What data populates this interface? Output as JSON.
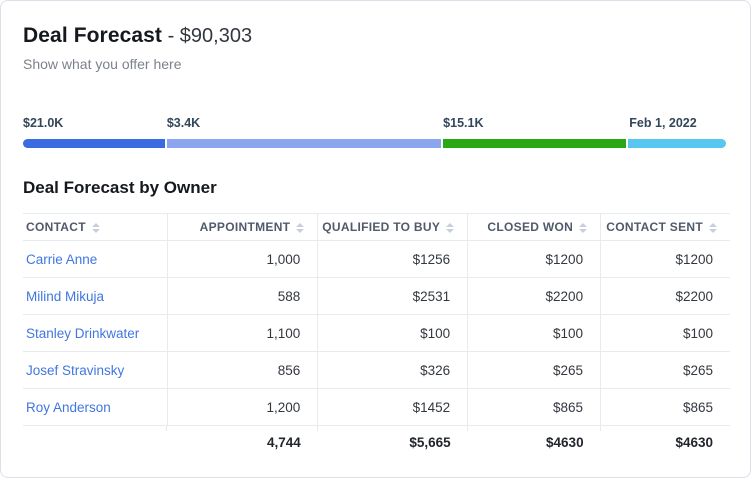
{
  "header": {
    "title": "Deal Forecast",
    "amount": " - $90,303",
    "subtitle": "Show what you offer here"
  },
  "progress": {
    "segments": [
      {
        "label": "$21.0K",
        "color": "#3a6be0",
        "width_pct": 20.2,
        "label_left_pct": 0
      },
      {
        "label": "$3.4K",
        "color": "#8ba6ee",
        "width_pct": 38.8,
        "label_left_pct": 20.4
      },
      {
        "label": "$15.1K",
        "color": "#2aa715",
        "width_pct": 25.9,
        "label_left_pct": 59.6
      },
      {
        "label": "Feb 1, 2022",
        "color": "#57c6f0",
        "width_pct": 13.9,
        "label_left_pct": 86.0
      }
    ]
  },
  "table": {
    "title": "Deal Forecast by Owner",
    "columns": [
      {
        "label": "CONTACT"
      },
      {
        "label": "APPOINTMENT"
      },
      {
        "label": "QUALIFIED TO BUY"
      },
      {
        "label": "CLOSED WON"
      },
      {
        "label": "CONTACT SENT"
      }
    ],
    "rows": [
      {
        "contact": "Carrie Anne",
        "values": [
          "1,000",
          "$1256",
          "$1200",
          "$1200"
        ]
      },
      {
        "contact": "Milind Mikuja",
        "values": [
          "588",
          "$2531",
          "$2200",
          "$2200"
        ]
      },
      {
        "contact": "Stanley Drinkwater",
        "values": [
          "1,100",
          "$100",
          "$100",
          "$100"
        ]
      },
      {
        "contact": "Josef Stravinsky",
        "values": [
          "856",
          "$326",
          "$265",
          "$265"
        ]
      },
      {
        "contact": "Roy Anderson",
        "values": [
          "1,200",
          "$1452",
          "$865",
          "$865"
        ]
      }
    ],
    "totals": {
      "values": [
        "4,744",
        "$5,665",
        "$4630",
        "$4630"
      ]
    }
  }
}
